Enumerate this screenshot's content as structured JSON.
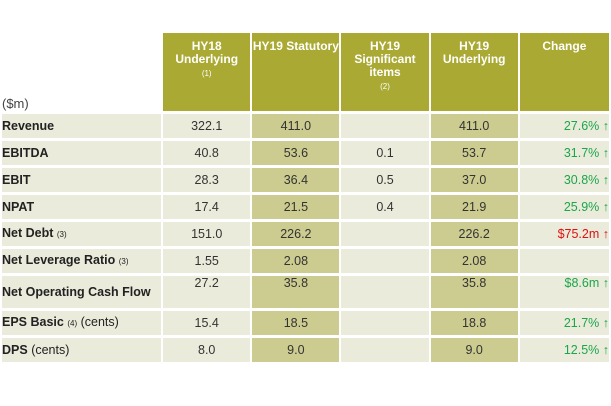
{
  "colors": {
    "header_bg": "#a9a933",
    "cell_bg": "#ebebdb",
    "shaded_bg": "#cccc90",
    "positive": "#1aa64b",
    "negative": "#e01010"
  },
  "table": {
    "unit_label": "($m)",
    "columns": [
      {
        "title": "HY18 Underlying",
        "note": "(1)"
      },
      {
        "title": "HY19 Statutory",
        "note": ""
      },
      {
        "title": "HY19 Significant items",
        "note": "(2)"
      },
      {
        "title": "HY19 Underlying",
        "note": ""
      },
      {
        "title": "Change",
        "note": ""
      }
    ],
    "rows": [
      {
        "label": "Revenue",
        "note": "",
        "unit": "",
        "values": [
          "322.1",
          "411.0",
          "",
          "411.0",
          "27.6% ↑"
        ],
        "change_sign": "positive"
      },
      {
        "label": "EBITDA",
        "note": "",
        "unit": "",
        "values": [
          "40.8",
          "53.6",
          "0.1",
          "53.7",
          "31.7% ↑"
        ],
        "change_sign": "positive"
      },
      {
        "label": "EBIT",
        "note": "",
        "unit": "",
        "values": [
          "28.3",
          "36.4",
          "0.5",
          "37.0",
          "30.8% ↑"
        ],
        "change_sign": "positive"
      },
      {
        "label": "NPAT",
        "note": "",
        "unit": "",
        "values": [
          "17.4",
          "21.5",
          "0.4",
          "21.9",
          "25.9% ↑"
        ],
        "change_sign": "positive"
      },
      {
        "label": "Net Debt",
        "note": "(3)",
        "unit": "",
        "values": [
          "151.0",
          "226.2",
          "",
          "226.2",
          "$75.2m ↑"
        ],
        "change_sign": "negative"
      },
      {
        "label": "Net Leverage Ratio",
        "note": "(3)",
        "unit": "",
        "values": [
          "1.55",
          "2.08",
          "",
          "2.08",
          ""
        ],
        "change_sign": "positive"
      },
      {
        "label": "Net Operating Cash Flow",
        "note": "",
        "unit": "",
        "values": [
          "27.2",
          "35.8",
          "",
          "35.8",
          "$8.6m ↑"
        ],
        "change_sign": "positive"
      },
      {
        "label": "EPS Basic",
        "note": "(4)",
        "unit": "(cents)",
        "values": [
          "15.4",
          "18.5",
          "",
          "18.8",
          "21.7% ↑"
        ],
        "change_sign": "positive"
      },
      {
        "label": "DPS",
        "note": "",
        "unit": "(cents)",
        "values": [
          "8.0",
          "9.0",
          "",
          "9.0",
          "12.5% ↑"
        ],
        "change_sign": "positive"
      }
    ]
  }
}
